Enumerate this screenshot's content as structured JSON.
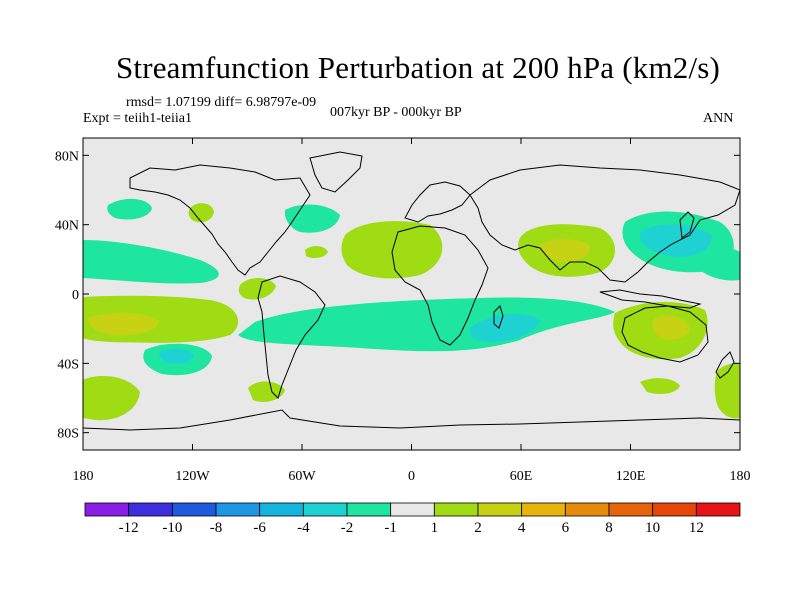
{
  "title": "Streamfunction Perturbation at 200 hPa (km2/s)",
  "stats": "rmsd= 1.07199 diff= 6.98797e-09",
  "experiment": "Expt = teiih1-teiia1",
  "period": "007kyr BP - 000kyr BP",
  "season": "ANN",
  "axes": {
    "lat_ticks": [
      "80N",
      "40N",
      "0",
      "40S",
      "80S"
    ],
    "lon_ticks": [
      "180",
      "120W",
      "60W",
      "0",
      "60E",
      "120E",
      "180"
    ]
  },
  "colorbar": {
    "labels": [
      "-12",
      "-10",
      "-8",
      "-6",
      "-4",
      "-2",
      "-1",
      "1",
      "2",
      "4",
      "6",
      "8",
      "10",
      "12"
    ],
    "colors": [
      "#8a1ee6",
      "#3d2ee0",
      "#1e5ae0",
      "#1e96e6",
      "#14b4e0",
      "#1ed2d2",
      "#1ee6a0",
      "#e8e8e8",
      "#a0dc14",
      "#c8d214",
      "#e6b40a",
      "#e68c0a",
      "#e6640a",
      "#e6460a",
      "#e61414"
    ]
  }
}
